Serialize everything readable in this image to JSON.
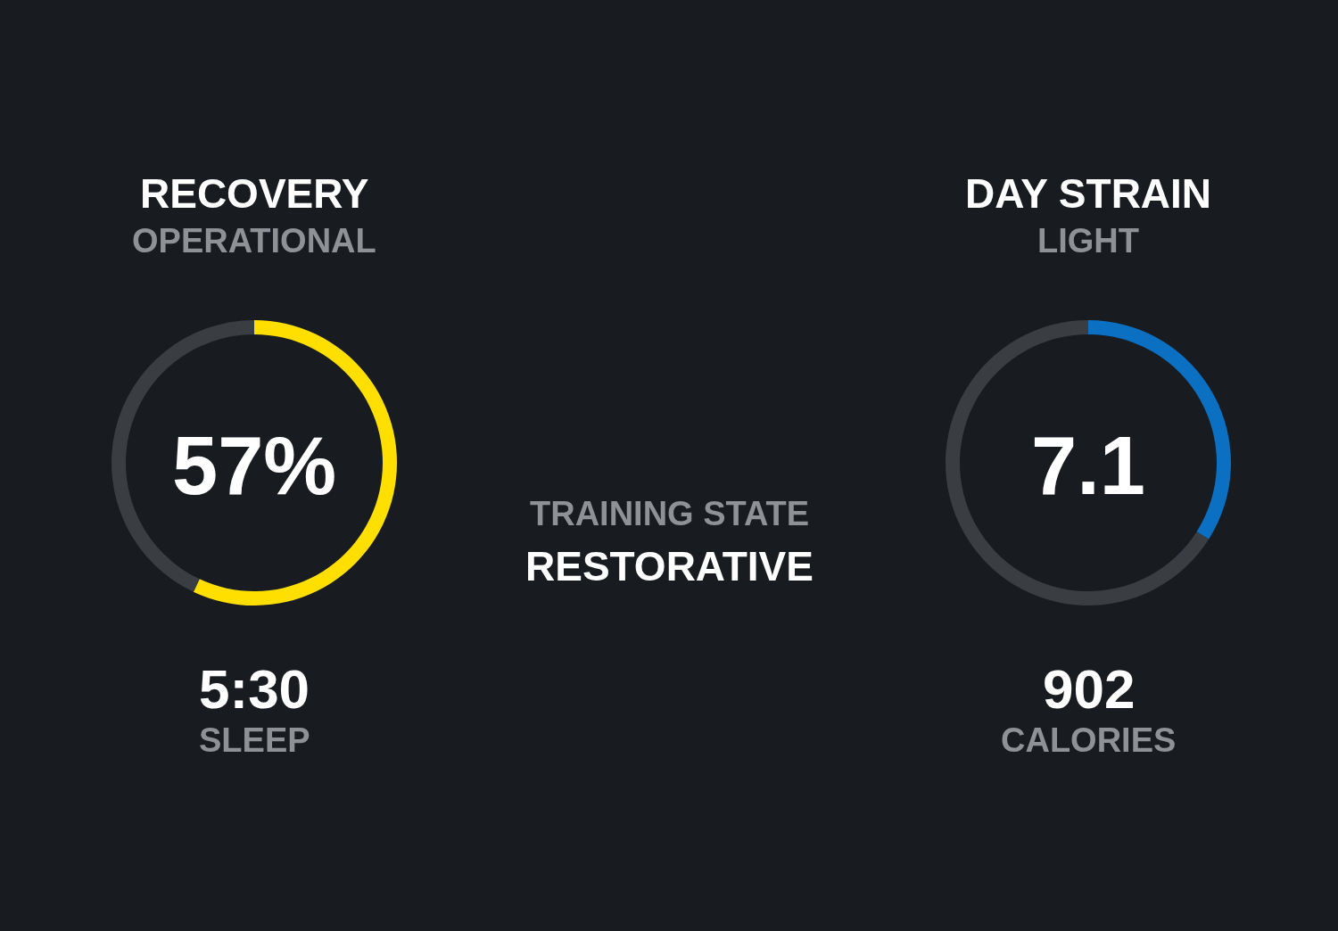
{
  "chart_data": [
    {
      "type": "donut",
      "title": "RECOVERY",
      "subtitle": "OPERATIONAL",
      "categories": [
        null,
        null
      ],
      "values": [
        57,
        43
      ],
      "colors": [
        "#ffdf00",
        "#3a3d41"
      ],
      "annotations": [
        "57%",
        "5:30",
        "SLEEP"
      ]
    },
    {
      "type": "other",
      "title": "TRAINING STATE",
      "subtitle": "RESTORATIVE"
    },
    {
      "type": "donut",
      "title": "DAY STRAIN",
      "subtitle": "LIGHT",
      "categories": [
        null,
        null
      ],
      "values": [
        34,
        66
      ],
      "colors": [
        "#0b6fc2",
        "#3a3d41"
      ],
      "annotations": [
        "7.1",
        "902",
        "CALORIES"
      ]
    }
  ]
}
